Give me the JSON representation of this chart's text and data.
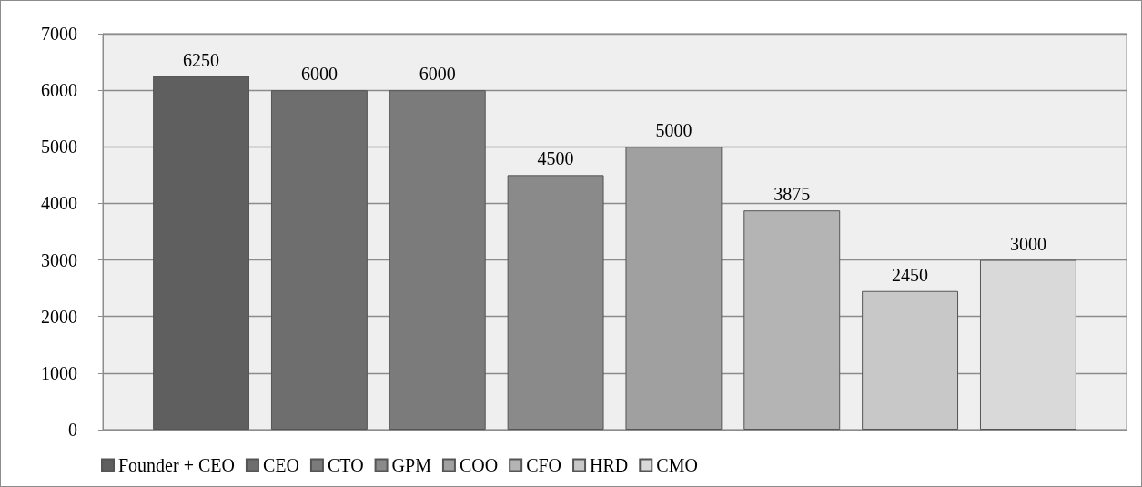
{
  "chart_data": {
    "type": "bar",
    "categories": [
      null
    ],
    "series": [
      {
        "name": "Founder + CEO",
        "color": "#5f5f5f",
        "values": [
          6250
        ]
      },
      {
        "name": "CEO",
        "color": "#6e6e6e",
        "values": [
          6000
        ]
      },
      {
        "name": "CTO",
        "color": "#7b7b7b",
        "values": [
          6000
        ]
      },
      {
        "name": "GPM",
        "color": "#8a8a8a",
        "values": [
          4500
        ]
      },
      {
        "name": "COO",
        "color": "#a0a0a0",
        "values": [
          5000
        ]
      },
      {
        "name": "CFO",
        "color": "#b4b4b4",
        "values": [
          3875
        ]
      },
      {
        "name": "HRD",
        "color": "#c8c8c8",
        "values": [
          2450
        ]
      },
      {
        "name": "CMO",
        "color": "#d9d9d9",
        "values": [
          3000
        ]
      }
    ],
    "ylim": [
      0,
      7000
    ],
    "yticks": [
      0,
      1000,
      2000,
      3000,
      4000,
      5000,
      6000,
      7000
    ],
    "grid": "y",
    "legend": "bottom",
    "data_labels": true
  }
}
